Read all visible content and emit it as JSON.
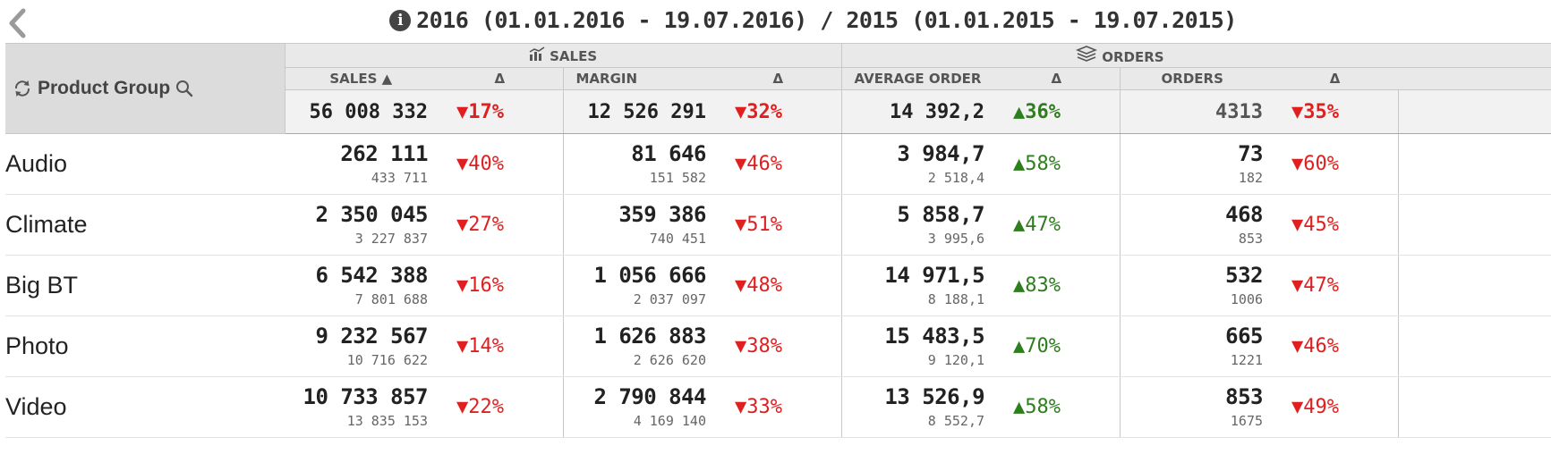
{
  "title": {
    "text": "2016 (01.01.2016 - 19.07.2016) / 2015 (01.01.2015 - 19.07.2015)",
    "info_icon": "i"
  },
  "icons": {
    "back": "chevron-left-icon",
    "info": "info-icon",
    "cycle": "cycle-icon",
    "search": "search-icon",
    "sales_group": "bar-line-chart-icon",
    "orders_group": "stack-icon"
  },
  "colors": {
    "negative": "#e02020",
    "positive": "#2e7d1e",
    "header_bg": "#e9e9e9"
  },
  "header": {
    "dimension_label": "Product Group",
    "groups": {
      "sales": "SALES",
      "orders": "ORDERS"
    },
    "columns": {
      "sales": "SALES ▲",
      "sales_delta": "Δ",
      "margin": "MARGIN",
      "margin_delta": "Δ",
      "avg_order": "AVERAGE ORDER",
      "avg_order_delta": "Δ",
      "orders": "ORDERS",
      "orders_delta": "Δ"
    }
  },
  "totals": {
    "sales": "56 008 332",
    "sales_delta": "▼17%",
    "margin": "12 526 291",
    "margin_delta": "▼32%",
    "avg_order": "14 392,2",
    "avg_order_delta": "▲36%",
    "orders": "4313",
    "orders_delta": "▼35%"
  },
  "rows": [
    {
      "name": "Audio",
      "sales": "262 111",
      "sales_prev": "433 711",
      "sales_delta": "▼40%",
      "margin": "81 646",
      "margin_prev": "151 582",
      "margin_delta": "▼46%",
      "avg_order": "3 984,7",
      "avg_order_prev": "2 518,4",
      "avg_order_delta": "▲58%",
      "orders": "73",
      "orders_prev": "182",
      "orders_delta": "▼60%"
    },
    {
      "name": "Climate",
      "sales": "2 350 045",
      "sales_prev": "3 227 837",
      "sales_delta": "▼27%",
      "margin": "359 386",
      "margin_prev": "740 451",
      "margin_delta": "▼51%",
      "avg_order": "5 858,7",
      "avg_order_prev": "3 995,6",
      "avg_order_delta": "▲47%",
      "orders": "468",
      "orders_prev": "853",
      "orders_delta": "▼45%"
    },
    {
      "name": "Big BT",
      "sales": "6 542 388",
      "sales_prev": "7 801 688",
      "sales_delta": "▼16%",
      "margin": "1 056 666",
      "margin_prev": "2 037 097",
      "margin_delta": "▼48%",
      "avg_order": "14 971,5",
      "avg_order_prev": "8 188,1",
      "avg_order_delta": "▲83%",
      "orders": "532",
      "orders_prev": "1006",
      "orders_delta": "▼47%"
    },
    {
      "name": "Photo",
      "sales": "9 232 567",
      "sales_prev": "10 716 622",
      "sales_delta": "▼14%",
      "margin": "1 626 883",
      "margin_prev": "2 626 620",
      "margin_delta": "▼38%",
      "avg_order": "15 483,5",
      "avg_order_prev": "9 120,1",
      "avg_order_delta": "▲70%",
      "orders": "665",
      "orders_prev": "1221",
      "orders_delta": "▼46%"
    },
    {
      "name": "Video",
      "sales": "10 733 857",
      "sales_prev": "13 835 153",
      "sales_delta": "▼22%",
      "margin": "2 790 844",
      "margin_prev": "4 169 140",
      "margin_delta": "▼33%",
      "avg_order": "13 526,9",
      "avg_order_prev": "8 552,7",
      "avg_order_delta": "▲58%",
      "orders": "853",
      "orders_prev": "1675",
      "orders_delta": "▼49%"
    }
  ]
}
